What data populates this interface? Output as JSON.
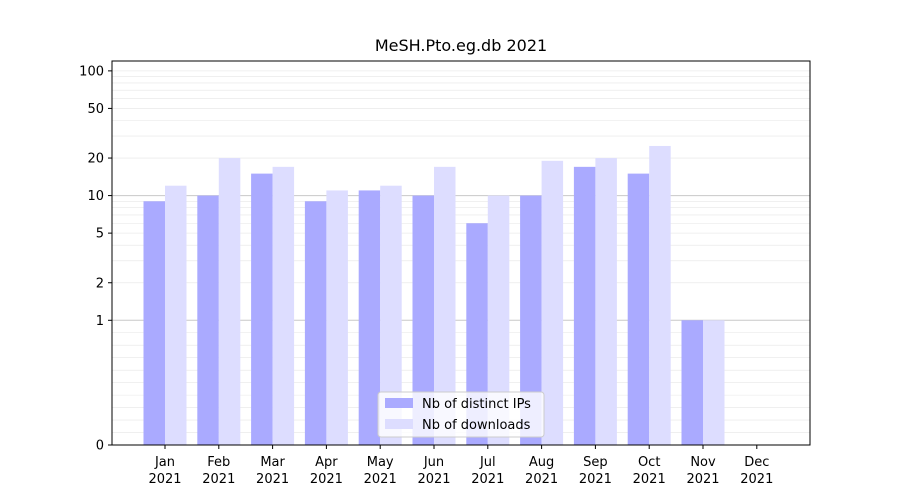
{
  "chart_data": {
    "type": "bar",
    "title": "MeSH.Pto.eg.db 2021",
    "xlabel": "",
    "ylabel": "",
    "y_scale": "symlog",
    "ylim": [
      0,
      120
    ],
    "yticks": [
      0,
      1,
      2,
      5,
      10,
      20,
      50,
      100
    ],
    "grid": "horizontal",
    "legend_position": "bottom-center",
    "categories": [
      "Jan\n2021",
      "Feb\n2021",
      "Mar\n2021",
      "Apr\n2021",
      "May\n2021",
      "Jun\n2021",
      "Jul\n2021",
      "Aug\n2021",
      "Sep\n2021",
      "Oct\n2021",
      "Nov\n2021",
      "Dec\n2021"
    ],
    "series": [
      {
        "name": "Nb of distinct IPs",
        "color": "#aaaaff",
        "values": [
          9,
          10,
          15,
          9,
          11,
          10,
          6,
          10,
          17,
          15,
          1,
          0
        ]
      },
      {
        "name": "Nb of downloads",
        "color": "#ddddff",
        "values": [
          12,
          20,
          17,
          11,
          12,
          17,
          10,
          19,
          20,
          25,
          1,
          0
        ]
      }
    ]
  }
}
